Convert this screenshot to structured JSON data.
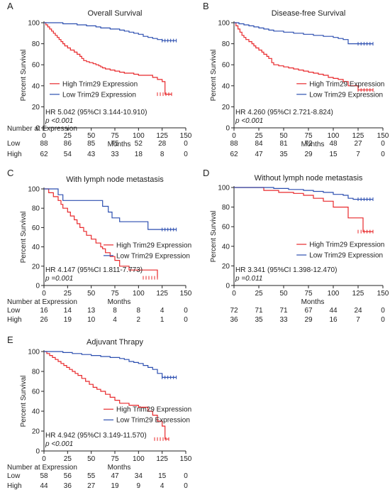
{
  "colors": {
    "high": "#e8282b",
    "low": "#2c4fb0",
    "axis": "#222222"
  },
  "risk_header": "Number at Expression",
  "chart_data": [
    {
      "type": "line",
      "panel": "A",
      "title": "Overall Survival",
      "xlabel": "Months",
      "ylabel": "Percent Survival",
      "xlim": [
        0,
        150
      ],
      "ylim": [
        0,
        100
      ],
      "xticks": [
        0,
        25,
        50,
        75,
        100,
        125,
        150
      ],
      "yticks": [
        0,
        20,
        40,
        60,
        80,
        100
      ],
      "grid": false,
      "legend": "middle-left",
      "annotations": [
        "HR 5.042 (95%CI 3.144-10.910)",
        "p <0.001"
      ],
      "series": [
        {
          "name": "High Trim29 Expression",
          "color": "#e8282b",
          "x": [
            0,
            2,
            4,
            6,
            8,
            10,
            12,
            14,
            16,
            18,
            20,
            22,
            25,
            28,
            32,
            35,
            38,
            40,
            42,
            45,
            48,
            52,
            55,
            58,
            60,
            62,
            65,
            70,
            75,
            80,
            85,
            90,
            95,
            100,
            110,
            115,
            120,
            125,
            128,
            135
          ],
          "y": [
            100,
            98,
            96,
            94,
            92,
            90,
            88,
            86,
            84,
            82,
            80,
            78,
            76,
            74,
            72,
            70,
            68,
            66,
            64,
            63,
            62,
            61,
            60,
            59,
            58,
            57,
            56,
            55,
            54,
            53,
            52,
            52,
            51,
            50,
            50,
            48,
            46,
            44,
            32,
            32
          ]
        },
        {
          "name": "Low Trim29 Expression",
          "color": "#2c4fb0",
          "x": [
            0,
            20,
            35,
            45,
            55,
            60,
            70,
            80,
            85,
            90,
            95,
            100,
            105,
            110,
            115,
            120,
            125,
            140
          ],
          "y": [
            100,
            99,
            98,
            97,
            96,
            95,
            94,
            93,
            92,
            91,
            90,
            89,
            87,
            86,
            85,
            84,
            83,
            83
          ]
        }
      ],
      "risk_table": {
        "rows": [
          {
            "label": "Low",
            "values": [
              "88",
              "86",
              "85",
              "75",
              "52",
              "28",
              "0"
            ]
          },
          {
            "label": "High",
            "values": [
              "62",
              "54",
              "43",
              "33",
              "18",
              "8",
              "0"
            ]
          }
        ]
      }
    },
    {
      "type": "line",
      "panel": "B",
      "title": "Disease-free Survival",
      "xlabel": "Months",
      "ylabel": "Percent Survival",
      "xlim": [
        0,
        150
      ],
      "ylim": [
        0,
        100
      ],
      "xticks": [
        0,
        25,
        50,
        75,
        100,
        125,
        150
      ],
      "yticks": [
        0,
        20,
        40,
        60,
        80,
        100
      ],
      "grid": false,
      "legend": "middle-right",
      "annotations": [
        "HR 4.260 (95%CI 2.721-8.824)",
        "p <0.001"
      ],
      "series": [
        {
          "name": "High Trim29 Expression",
          "color": "#e8282b",
          "x": [
            0,
            2,
            4,
            6,
            8,
            10,
            12,
            15,
            18,
            20,
            22,
            25,
            28,
            30,
            33,
            35,
            38,
            40,
            45,
            50,
            55,
            60,
            65,
            70,
            75,
            80,
            85,
            90,
            95,
            100,
            105,
            110,
            115,
            125,
            140
          ],
          "y": [
            100,
            97,
            94,
            91,
            88,
            86,
            84,
            82,
            80,
            78,
            76,
            74,
            72,
            70,
            68,
            66,
            62,
            60,
            59,
            58,
            57,
            56,
            55,
            54,
            53,
            52,
            51,
            50,
            48,
            47,
            46,
            44,
            40,
            36,
            36
          ]
        },
        {
          "name": "Low Trim29 Expression",
          "color": "#2c4fb0",
          "x": [
            0,
            5,
            10,
            15,
            20,
            25,
            30,
            35,
            40,
            50,
            60,
            70,
            80,
            90,
            100,
            105,
            110,
            115,
            120,
            140
          ],
          "y": [
            100,
            99,
            98,
            97,
            96,
            95,
            94,
            93,
            92,
            91,
            90,
            89,
            88,
            87,
            86,
            85,
            84,
            80,
            80,
            80
          ]
        }
      ],
      "risk_table": {
        "rows": [
          {
            "label": "",
            "values": [
              "88",
              "84",
              "81",
              "72",
              "48",
              "27",
              "0"
            ]
          },
          {
            "label": "",
            "values": [
              "62",
              "47",
              "35",
              "29",
              "15",
              "7",
              "0"
            ]
          }
        ]
      }
    },
    {
      "type": "line",
      "panel": "C",
      "title": "With lymph node metastasis",
      "xlabel": "Months",
      "ylabel": "Percent Survival",
      "xlim": [
        0,
        150
      ],
      "ylim": [
        0,
        100
      ],
      "xticks": [
        0,
        25,
        50,
        75,
        100,
        125,
        150
      ],
      "yticks": [
        0,
        20,
        40,
        60,
        80,
        100
      ],
      "grid": false,
      "legend": "middle-right",
      "annotations": [
        "HR 4.147 (95%CI 1.811-7.773)",
        "p =0.001"
      ],
      "series": [
        {
          "name": "High Trim29 Expression",
          "color": "#e8282b",
          "x": [
            0,
            5,
            10,
            15,
            18,
            20,
            25,
            28,
            32,
            35,
            38,
            42,
            45,
            50,
            55,
            60,
            62,
            65,
            70,
            75,
            80,
            90,
            100,
            110,
            115,
            120
          ],
          "y": [
            100,
            96,
            92,
            88,
            84,
            80,
            76,
            72,
            68,
            64,
            60,
            56,
            52,
            48,
            44,
            40,
            38,
            34,
            30,
            26,
            20,
            16,
            16,
            16,
            16,
            8
          ]
        },
        {
          "name": "Low Trim29 Expression",
          "color": "#2c4fb0",
          "x": [
            0,
            15,
            20,
            25,
            62,
            68,
            72,
            80,
            90,
            100,
            110,
            120,
            140
          ],
          "y": [
            100,
            94,
            88,
            88,
            82,
            76,
            70,
            66,
            66,
            66,
            58,
            58,
            58
          ]
        }
      ],
      "risk_table": {
        "rows": [
          {
            "label": "Low",
            "values": [
              "16",
              "14",
              "13",
              "8",
              "8",
              "4",
              "0"
            ]
          },
          {
            "label": "High",
            "values": [
              "26",
              "19",
              "10",
              "4",
              "2",
              "1",
              "0"
            ]
          }
        ]
      }
    },
    {
      "type": "line",
      "panel": "D",
      "title": "Without lymph node metastasis",
      "xlabel": "Months",
      "ylabel": "Percent Survival",
      "xlim": [
        0,
        150
      ],
      "ylim": [
        0,
        100
      ],
      "xticks": [
        0,
        25,
        50,
        75,
        100,
        125,
        150
      ],
      "yticks": [
        0,
        20,
        40,
        60,
        80,
        100
      ],
      "grid": false,
      "legend": "middle-right",
      "annotations": [
        "HR 3.341 (95%CI 1.398-12.470)",
        "p =0.011"
      ],
      "series": [
        {
          "name": "High Trim29 Expression",
          "color": "#e8282b",
          "x": [
            0,
            30,
            45,
            60,
            70,
            80,
            90,
            100,
            110,
            115,
            125,
            130,
            140
          ],
          "y": [
            100,
            97,
            95,
            94,
            92,
            89,
            86,
            80,
            80,
            69,
            69,
            55,
            55
          ]
        },
        {
          "name": "Low Trim29 Expression",
          "color": "#2c4fb0",
          "x": [
            0,
            40,
            55,
            70,
            80,
            90,
            100,
            110,
            115,
            120,
            140
          ],
          "y": [
            100,
            99,
            98,
            97,
            96,
            95,
            93,
            92,
            89,
            88,
            88
          ]
        }
      ],
      "risk_table": {
        "rows": [
          {
            "label": "",
            "values": [
              "72",
              "71",
              "71",
              "67",
              "44",
              "24",
              "0"
            ]
          },
          {
            "label": "",
            "values": [
              "36",
              "35",
              "33",
              "29",
              "16",
              "7",
              "0"
            ]
          }
        ]
      }
    },
    {
      "type": "line",
      "panel": "E",
      "title": "Adjuvant Thrapy",
      "xlabel": "Months",
      "ylabel": "Percent Survival",
      "xlim": [
        0,
        150
      ],
      "ylim": [
        0,
        100
      ],
      "xticks": [
        0,
        25,
        50,
        75,
        100,
        125,
        150
      ],
      "yticks": [
        0,
        20,
        40,
        60,
        80,
        100
      ],
      "grid": false,
      "legend": "middle-right",
      "annotations": [
        "HR 4.942 (95%CI 3.149-11.570)",
        "p <0.001"
      ],
      "series": [
        {
          "name": "High Trim29 Expression",
          "color": "#e8282b",
          "x": [
            0,
            3,
            6,
            9,
            12,
            15,
            18,
            21,
            24,
            27,
            30,
            33,
            36,
            40,
            44,
            48,
            52,
            56,
            60,
            65,
            70,
            75,
            80,
            90,
            100,
            110,
            115,
            120,
            125,
            128,
            132
          ],
          "y": [
            100,
            98,
            96,
            94,
            92,
            90,
            88,
            86,
            84,
            82,
            80,
            78,
            76,
            73,
            70,
            67,
            64,
            62,
            60,
            57,
            54,
            51,
            48,
            46,
            44,
            40,
            36,
            30,
            25,
            12,
            12
          ]
        },
        {
          "name": "Low Trim29 Expression",
          "color": "#2c4fb0",
          "x": [
            0,
            20,
            30,
            40,
            50,
            60,
            70,
            80,
            85,
            90,
            95,
            100,
            105,
            110,
            115,
            120,
            125,
            140
          ],
          "y": [
            100,
            99,
            98,
            97,
            96,
            95,
            94,
            93,
            92,
            90,
            89,
            88,
            86,
            84,
            82,
            78,
            74,
            74
          ]
        }
      ],
      "risk_table": {
        "rows": [
          {
            "label": "Low",
            "values": [
              "58",
              "56",
              "55",
              "47",
              "34",
              "15",
              "0"
            ]
          },
          {
            "label": "High",
            "values": [
              "44",
              "36",
              "27",
              "19",
              "9",
              "4",
              "0"
            ]
          }
        ]
      }
    }
  ]
}
